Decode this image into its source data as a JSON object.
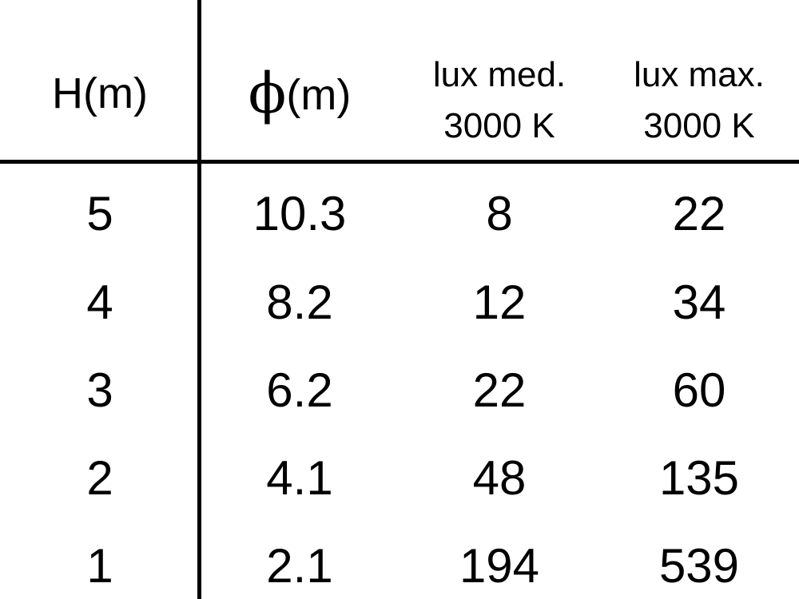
{
  "table": {
    "headers": [
      {
        "text": "H(m)"
      },
      {
        "symbol": "ϕ",
        "text": "(m)"
      },
      {
        "line1": "lux med.",
        "line2": "3000 K"
      },
      {
        "line1": "lux max.",
        "line2": "3000 K"
      }
    ],
    "rows": [
      [
        "5",
        "10.3",
        "8",
        "22"
      ],
      [
        "4",
        "8.2",
        "12",
        "34"
      ],
      [
        "3",
        "6.2",
        "22",
        "60"
      ],
      [
        "2",
        "4.1",
        "48",
        "135"
      ],
      [
        "1",
        "2.1",
        "194",
        "539"
      ]
    ]
  }
}
